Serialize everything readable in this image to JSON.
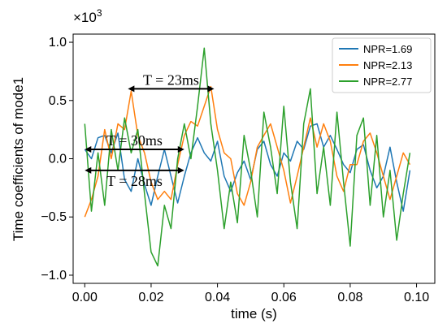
{
  "chart_data": {
    "type": "line",
    "title": "",
    "xlabel": "time (s)",
    "ylabel": "Time coefficients of mode1",
    "multiplier_label": "×10",
    "multiplier_exponent": "3",
    "xlim": [
      -0.0035,
      0.1055
    ],
    "ylim": [
      -1.07,
      1.07
    ],
    "x_ticks": [
      {
        "value": 0.0,
        "label": "0.00"
      },
      {
        "value": 0.02,
        "label": "0.02"
      },
      {
        "value": 0.04,
        "label": "0.04"
      },
      {
        "value": 0.06,
        "label": "0.06"
      },
      {
        "value": 0.08,
        "label": "0.08"
      },
      {
        "value": 0.1,
        "label": "0.10"
      }
    ],
    "y_ticks": [
      {
        "value": 1.0,
        "label": "1.0"
      },
      {
        "value": 0.5,
        "label": "0.5"
      },
      {
        "value": 0.0,
        "label": "0.0"
      },
      {
        "value": -0.5,
        "label": "−0.5"
      },
      {
        "value": -1.0,
        "label": "−1.0"
      }
    ],
    "grid": false,
    "legend_position": "top-right",
    "series": [
      {
        "name": "NPR=1.69",
        "color": "#1f77b4",
        "x": [
          0.0,
          0.002,
          0.004,
          0.006,
          0.008,
          0.01,
          0.012,
          0.014,
          0.016,
          0.018,
          0.02,
          0.022,
          0.024,
          0.026,
          0.028,
          0.03,
          0.032,
          0.034,
          0.036,
          0.038,
          0.04,
          0.042,
          0.044,
          0.046,
          0.048,
          0.05,
          0.052,
          0.054,
          0.056,
          0.058,
          0.06,
          0.062,
          0.064,
          0.066,
          0.068,
          0.07,
          0.072,
          0.074,
          0.076,
          0.078,
          0.08,
          0.082,
          0.084,
          0.086,
          0.088,
          0.09,
          0.092,
          0.094,
          0.096,
          0.098
        ],
        "y": [
          0.08,
          0.0,
          0.18,
          0.2,
          0.05,
          0.22,
          -0.18,
          -0.28,
          0.0,
          -0.22,
          -0.4,
          -0.15,
          0.08,
          -0.15,
          -0.38,
          -0.15,
          0.05,
          0.18,
          0.05,
          -0.02,
          0.15,
          -0.15,
          -0.28,
          -0.12,
          -0.02,
          -0.18,
          0.08,
          0.15,
          -0.05,
          -0.15,
          0.05,
          -0.02,
          0.15,
          0.08,
          0.28,
          0.3,
          0.1,
          0.2,
          0.08,
          -0.05,
          -0.12,
          0.08,
          0.12,
          -0.1,
          -0.25,
          -0.15,
          0.1,
          -0.2,
          -0.45,
          -0.1
        ]
      },
      {
        "name": "NPR=2.13",
        "color": "#ff7f0e",
        "x": [
          0.0,
          0.002,
          0.004,
          0.006,
          0.008,
          0.01,
          0.012,
          0.014,
          0.016,
          0.018,
          0.02,
          0.022,
          0.024,
          0.026,
          0.028,
          0.03,
          0.032,
          0.034,
          0.036,
          0.038,
          0.04,
          0.042,
          0.044,
          0.046,
          0.048,
          0.05,
          0.052,
          0.054,
          0.056,
          0.058,
          0.06,
          0.062,
          0.064,
          0.066,
          0.068,
          0.07,
          0.072,
          0.074,
          0.076,
          0.078,
          0.08,
          0.082,
          0.084,
          0.086,
          0.088,
          0.09,
          0.092,
          0.094,
          0.096,
          0.098
        ],
        "y": [
          -0.5,
          -0.35,
          -0.15,
          0.25,
          0.0,
          0.3,
          0.25,
          0.58,
          0.2,
          0.05,
          -0.2,
          -0.35,
          -0.28,
          -0.35,
          -0.05,
          0.2,
          0.32,
          0.28,
          0.45,
          0.62,
          0.25,
          0.05,
          0.0,
          -0.3,
          -0.4,
          -0.2,
          0.1,
          0.2,
          0.3,
          0.1,
          -0.1,
          -0.38,
          -0.15,
          0.1,
          0.35,
          0.1,
          0.3,
          0.15,
          -0.15,
          -0.28,
          -0.05,
          -0.05,
          0.15,
          0.22,
          0.05,
          -0.15,
          -0.35,
          -0.15,
          0.05,
          -0.05
        ]
      },
      {
        "name": "NPR=2.77",
        "color": "#2ca02c",
        "x": [
          0.0,
          0.002,
          0.004,
          0.006,
          0.008,
          0.01,
          0.012,
          0.014,
          0.016,
          0.018,
          0.02,
          0.022,
          0.024,
          0.026,
          0.028,
          0.03,
          0.032,
          0.034,
          0.036,
          0.038,
          0.04,
          0.042,
          0.044,
          0.046,
          0.048,
          0.05,
          0.052,
          0.054,
          0.056,
          0.058,
          0.06,
          0.062,
          0.064,
          0.066,
          0.068,
          0.07,
          0.072,
          0.074,
          0.076,
          0.078,
          0.08,
          0.082,
          0.084,
          0.086,
          0.088,
          0.09,
          0.092,
          0.094,
          0.096,
          0.098
        ],
        "y": [
          0.3,
          -0.45,
          0.05,
          -0.4,
          0.25,
          -0.1,
          0.35,
          0.05,
          0.25,
          -0.3,
          -0.8,
          -0.92,
          -0.4,
          -0.6,
          0.0,
          0.3,
          0.0,
          0.45,
          0.95,
          0.3,
          -0.1,
          -0.6,
          -0.2,
          -0.55,
          0.2,
          -0.1,
          -0.5,
          0.4,
          0.1,
          -0.3,
          0.45,
          -0.2,
          -0.6,
          0.3,
          0.6,
          -0.3,
          0.1,
          -0.4,
          0.4,
          -0.2,
          -0.75,
          0.2,
          0.35,
          -0.4,
          0.2,
          -0.5,
          -0.1,
          -0.7,
          -0.3,
          0.05
        ]
      }
    ],
    "annotations": [
      {
        "label": "T = 23ms",
        "x_start": 0.013,
        "x_end": 0.039,
        "y": 0.6
      },
      {
        "label": "T = 30ms",
        "x_start": 0.0,
        "x_end": 0.03,
        "y": 0.08
      },
      {
        "label": "T = 28ms",
        "x_start": 0.0,
        "x_end": 0.03,
        "y": -0.1
      }
    ]
  }
}
